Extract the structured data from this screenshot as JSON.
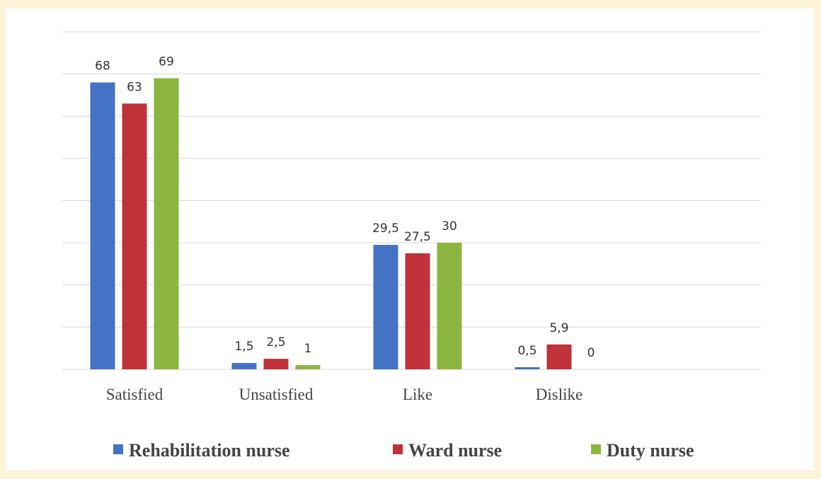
{
  "chart_data": {
    "type": "bar",
    "categories": [
      "Satisfied",
      "Unsatisfied",
      "Like",
      "Dislike"
    ],
    "series": [
      {
        "name": "Rehabilitation nurse",
        "color": "#4472c4",
        "values": [
          68,
          1.5,
          29.5,
          0.5
        ],
        "value_labels": [
          "68",
          "1,5",
          "29,5",
          "0,5"
        ]
      },
      {
        "name": "Ward nurse",
        "color": "#c0323a",
        "values": [
          63,
          2.5,
          27.5,
          5.9
        ],
        "value_labels": [
          "63",
          "2,5",
          "27,5",
          "5,9"
        ]
      },
      {
        "name": "Duty nurse",
        "color": "#8db641",
        "values": [
          69,
          1,
          30,
          0
        ],
        "value_labels": [
          "69",
          "1",
          "30",
          "0"
        ]
      }
    ],
    "ylim": [
      0,
      80
    ],
    "yticks": [
      0,
      10,
      20,
      30,
      40,
      50,
      60,
      70,
      80
    ],
    "grid": true,
    "legend": "bottom"
  }
}
